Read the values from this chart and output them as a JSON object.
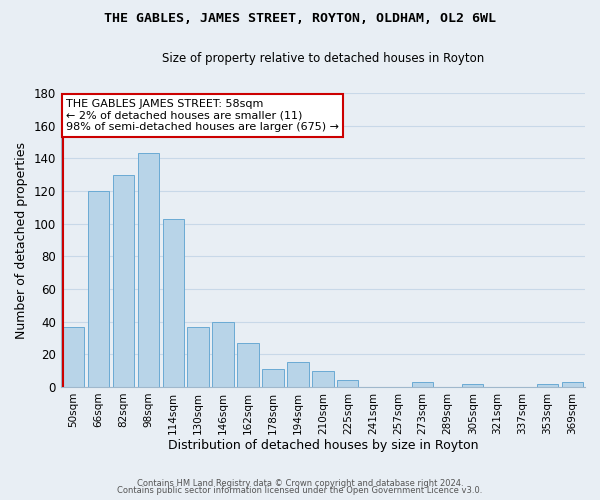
{
  "title": "THE GABLES, JAMES STREET, ROYTON, OLDHAM, OL2 6WL",
  "subtitle": "Size of property relative to detached houses in Royton",
  "xlabel": "Distribution of detached houses by size in Royton",
  "ylabel": "Number of detached properties",
  "bar_color": "#b8d4e8",
  "bar_edge_color": "#6aaad4",
  "highlight_bar_edge_color": "#cc0000",
  "background_color": "#e8eef4",
  "plot_bg_color": "#e8eef4",
  "categories": [
    "50sqm",
    "66sqm",
    "82sqm",
    "98sqm",
    "114sqm",
    "130sqm",
    "146sqm",
    "162sqm",
    "178sqm",
    "194sqm",
    "210sqm",
    "225sqm",
    "241sqm",
    "257sqm",
    "273sqm",
    "289sqm",
    "305sqm",
    "321sqm",
    "337sqm",
    "353sqm",
    "369sqm"
  ],
  "values": [
    37,
    120,
    130,
    143,
    103,
    37,
    40,
    27,
    11,
    15,
    10,
    4,
    0,
    0,
    3,
    0,
    2,
    0,
    0,
    2,
    3
  ],
  "highlight_index": 0,
  "annotation_title": "THE GABLES JAMES STREET: 58sqm",
  "annotation_line1": "← 2% of detached houses are smaller (11)",
  "annotation_line2": "98% of semi-detached houses are larger (675) →",
  "annotation_box_color": "#ffffff",
  "annotation_box_edge_color": "#cc0000",
  "ylim": [
    0,
    180
  ],
  "yticks": [
    0,
    20,
    40,
    60,
    80,
    100,
    120,
    140,
    160,
    180
  ],
  "footer1": "Contains HM Land Registry data © Crown copyright and database right 2024.",
  "footer2": "Contains public sector information licensed under the Open Government Licence v3.0.",
  "grid_color": "#c8d8e8"
}
